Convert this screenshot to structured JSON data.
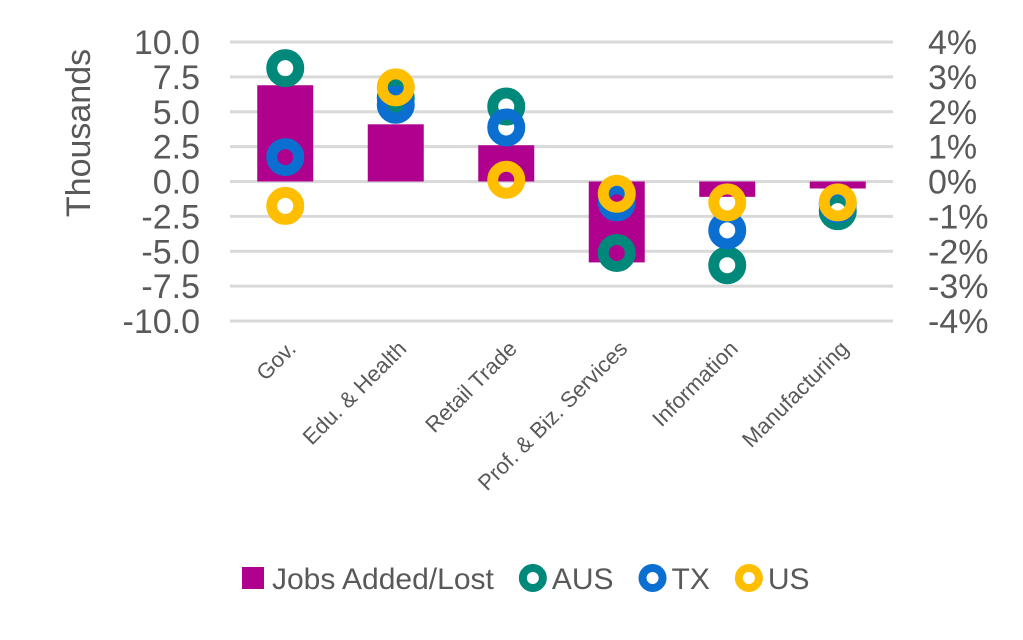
{
  "chart_data": {
    "type": "bar",
    "title": "",
    "xlabel": "",
    "ylabel": "Thousands",
    "ylim": [
      -10,
      10
    ],
    "y_ticks": [
      "10.0",
      "7.5",
      "5.0",
      "2.5",
      "0.0",
      "-2.5",
      "-5.0",
      "-7.5",
      "-10.0"
    ],
    "y2lim": [
      -4,
      4
    ],
    "y2_ticks": [
      "4%",
      "3%",
      "2%",
      "1%",
      "0%",
      "-1%",
      "-2%",
      "-3%",
      "-4%"
    ],
    "grid": true,
    "legend_position": "bottom",
    "categories": [
      "Gov.",
      "Edu. & Health",
      "Retail Trade",
      "Prof. & Biz. Services",
      "Information",
      "Manufacturing"
    ],
    "series": [
      {
        "name": "Jobs Added/Lost",
        "type": "bar",
        "axis": "left",
        "color": "#B0008E",
        "values": [
          6.9,
          4.1,
          2.6,
          -5.8,
          -1.1,
          -0.5
        ]
      },
      {
        "name": "AUS",
        "type": "scatter",
        "axis": "right",
        "unit": "%",
        "color": "#00897B",
        "values": [
          3.25,
          2.4,
          2.15,
          -2.05,
          -2.4,
          -0.85
        ]
      },
      {
        "name": "TX",
        "type": "scatter",
        "axis": "right",
        "unit": "%",
        "color": "#0A6FD1",
        "values": [
          0.7,
          2.2,
          1.55,
          -0.6,
          -1.4,
          -0.65
        ]
      },
      {
        "name": "US",
        "type": "scatter",
        "axis": "right",
        "unit": "%",
        "color": "#FFBF00",
        "values": [
          -0.7,
          2.7,
          0.05,
          -0.35,
          -0.6,
          -0.6
        ]
      }
    ]
  }
}
